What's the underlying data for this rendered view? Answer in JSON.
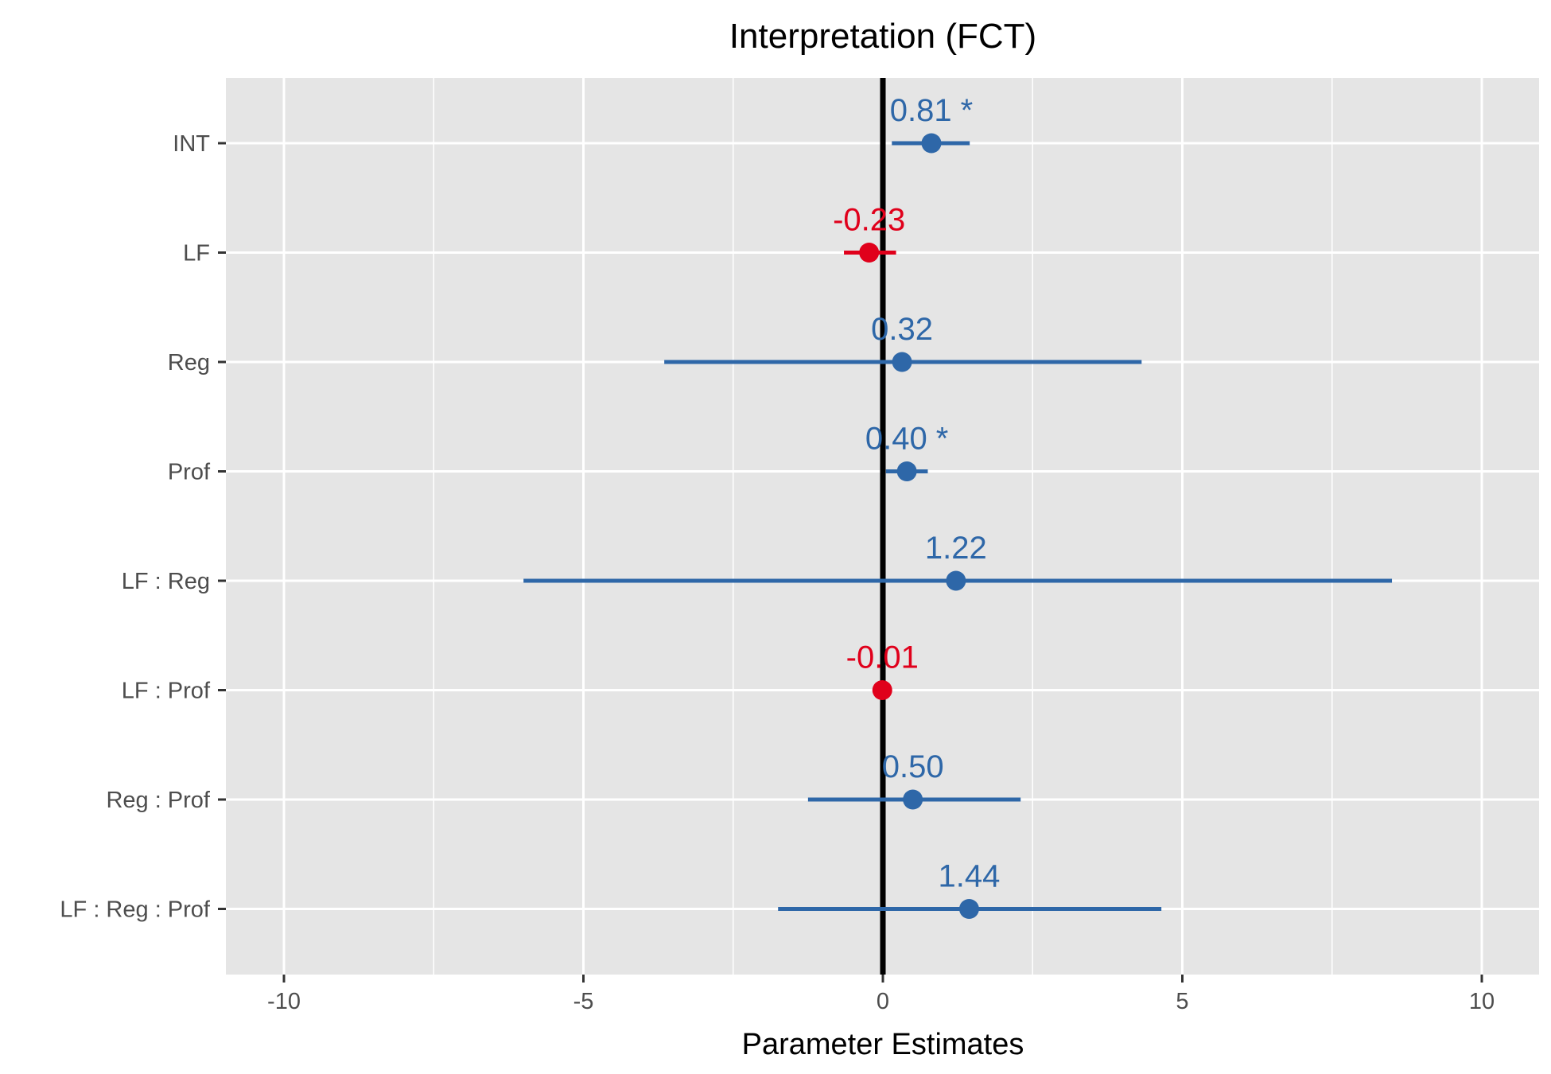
{
  "chart_data": {
    "type": "scatter",
    "title": "Interpretation (FCT)",
    "xlabel": "Parameter Estimates",
    "ylabel": "",
    "xlim": [
      -11,
      11
    ],
    "x_ticks": [
      -10,
      -5,
      0,
      5,
      10
    ],
    "x_tick_labels": [
      "-10",
      "-5",
      "0",
      "5",
      "10"
    ],
    "grid": true,
    "reference_line_x": 0,
    "colors": {
      "positive": "#2E67A8",
      "negative": "#E0001B",
      "reference": "#000000",
      "panel": "#E5E5E5",
      "grid": "#FFFFFF"
    },
    "points": [
      {
        "term": "INT",
        "estimate": 0.81,
        "ci_low": 0.15,
        "ci_high": 1.45,
        "label": "0.81 *"
      },
      {
        "term": "LF",
        "estimate": -0.23,
        "ci_low": -0.65,
        "ci_high": 0.22,
        "label": "-0.23"
      },
      {
        "term": "Reg",
        "estimate": 0.32,
        "ci_low": -3.65,
        "ci_high": 4.32,
        "label": "0.32"
      },
      {
        "term": "Prof",
        "estimate": 0.4,
        "ci_low": 0.05,
        "ci_high": 0.75,
        "label": "0.40 *"
      },
      {
        "term": "LF : Reg",
        "estimate": 1.22,
        "ci_low": -6.0,
        "ci_high": 8.5,
        "label": "1.22"
      },
      {
        "term": "LF : Prof",
        "estimate": -0.01,
        "ci_low": -0.12,
        "ci_high": 0.1,
        "label": "-0.01"
      },
      {
        "term": "Reg : Prof",
        "estimate": 0.5,
        "ci_low": -1.25,
        "ci_high": 2.3,
        "label": "0.50"
      },
      {
        "term": "LF : Reg : Prof",
        "estimate": 1.44,
        "ci_low": -1.75,
        "ci_high": 4.65,
        "label": "1.44"
      }
    ]
  }
}
